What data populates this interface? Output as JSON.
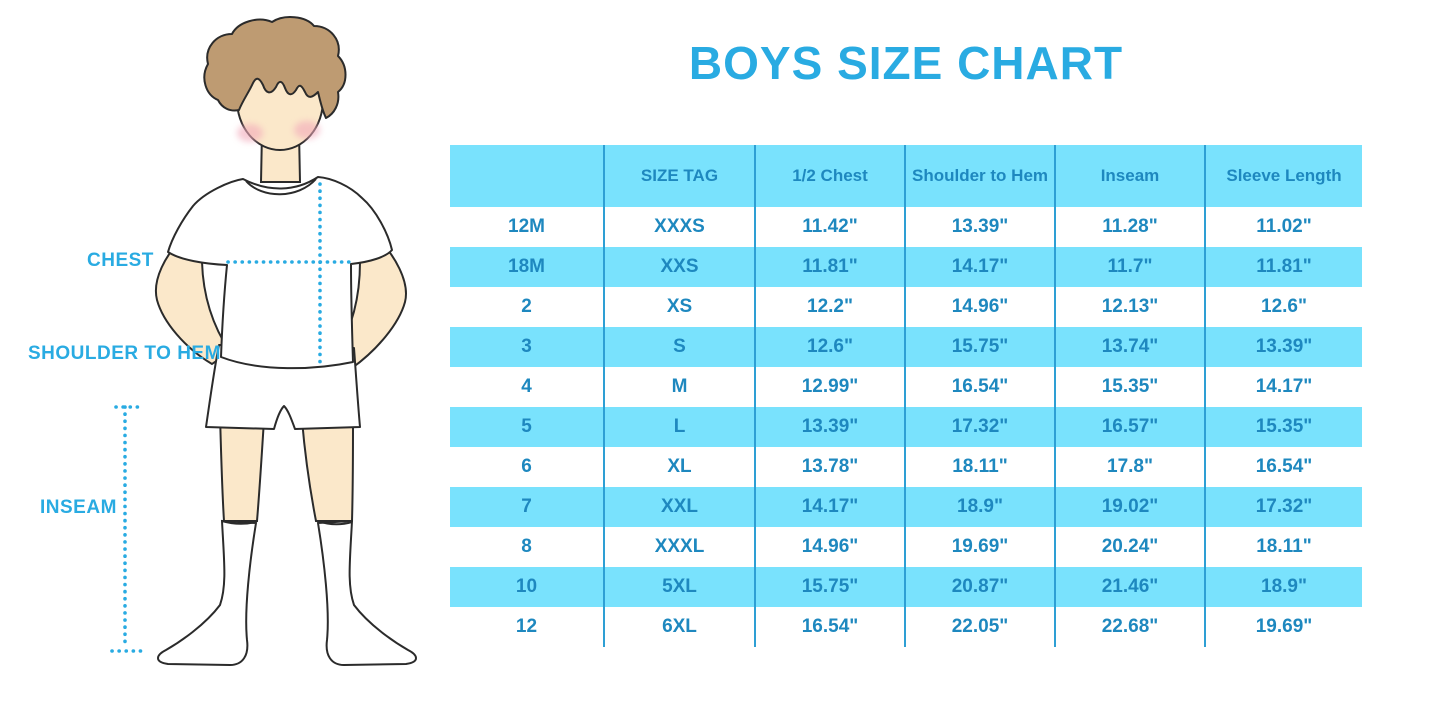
{
  "page": {
    "title": "BOYS SIZE CHART"
  },
  "figure": {
    "description": "cartoon boy standing, hands behind back, white tee, white shorts, knee socks, with dotted measurement guides",
    "labels": {
      "chest": "CHEST",
      "shoulder_to_hem": "SHOULDER TO HEM",
      "inseam": "INSEAM"
    }
  },
  "colors": {
    "accent_title_and_guides": "#29ABE2",
    "table_text": "#1E88BF",
    "row_highlight": "#79E2FD",
    "column_divider": "#2E9FD4",
    "skin": "#FBE8CA",
    "hair": "#BE9B72",
    "cheek": "#F2A9BA"
  },
  "chart_data": {
    "type": "table",
    "title": "BOYS SIZE CHART",
    "columns": [
      "",
      "SIZE TAG",
      "1/2 Chest",
      "Shoulder to Hem",
      "Inseam",
      "Sleeve Length"
    ],
    "rows": [
      [
        "12M",
        "XXXS",
        "11.42\"",
        "13.39\"",
        "11.28\"",
        "11.02\""
      ],
      [
        "18M",
        "XXS",
        "11.81\"",
        "14.17\"",
        "11.7\"",
        "11.81\""
      ],
      [
        "2",
        "XS",
        "12.2\"",
        "14.96\"",
        "12.13\"",
        "12.6\""
      ],
      [
        "3",
        "S",
        "12.6\"",
        "15.75\"",
        "13.74\"",
        "13.39\""
      ],
      [
        "4",
        "M",
        "12.99\"",
        "16.54\"",
        "15.35\"",
        "14.17\""
      ],
      [
        "5",
        "L",
        "13.39\"",
        "17.32\"",
        "16.57\"",
        "15.35\""
      ],
      [
        "6",
        "XL",
        "13.78\"",
        "18.11\"",
        "17.8\"",
        "16.54\""
      ],
      [
        "7",
        "XXL",
        "14.17\"",
        "18.9\"",
        "19.02\"",
        "17.32\""
      ],
      [
        "8",
        "XXXL",
        "14.96\"",
        "19.69\"",
        "20.24\"",
        "18.11\""
      ],
      [
        "10",
        "5XL",
        "15.75\"",
        "20.87\"",
        "21.46\"",
        "18.9\""
      ],
      [
        "12",
        "6XL",
        "16.54\"",
        "22.05\"",
        "22.68\"",
        "19.69\""
      ]
    ],
    "layout_hints": {
      "striped_rows": "alternating white / light blue starting white",
      "header_background": "light blue",
      "grid": "vertical column dividers only"
    }
  }
}
